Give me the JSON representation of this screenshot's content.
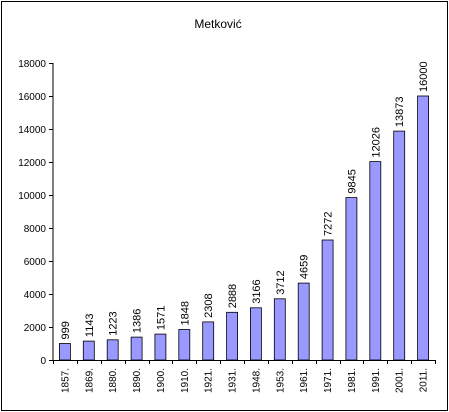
{
  "chart_data": {
    "type": "bar",
    "title": "Metković",
    "xlabel": "",
    "ylabel": "",
    "categories": [
      "1857.",
      "1869.",
      "1880.",
      "1890.",
      "1900.",
      "1910.",
      "1921.",
      "1931.",
      "1948.",
      "1953.",
      "1961.",
      "1971.",
      "1981.",
      "1991.",
      "2001.",
      "2011."
    ],
    "values": [
      999,
      1143,
      1223,
      1386,
      1571,
      1848,
      2308,
      2888,
      3166,
      3712,
      4659,
      7272,
      9845,
      12026,
      13873,
      16000
    ],
    "data_labels": [
      "999",
      "1143",
      "1223",
      "1386",
      "1571",
      "1848",
      "2308",
      "2888",
      "3166",
      "3712",
      "4659",
      "7272",
      "9845",
      "12026",
      "13873",
      "16000"
    ],
    "ylim": [
      0,
      18000
    ],
    "yticks": [
      0,
      2000,
      4000,
      6000,
      8000,
      10000,
      12000,
      14000,
      16000,
      18000
    ],
    "ytick_labels": [
      "0",
      "2000",
      "4000",
      "6000",
      "8000",
      "10000",
      "12000",
      "14000",
      "16000",
      "18000"
    ],
    "grid": false,
    "legend": "none",
    "colors": {
      "bar_fill": "#9999ff",
      "bar_stroke": "#000000",
      "axis": "#000000",
      "plot_background": "#ffffff"
    }
  }
}
